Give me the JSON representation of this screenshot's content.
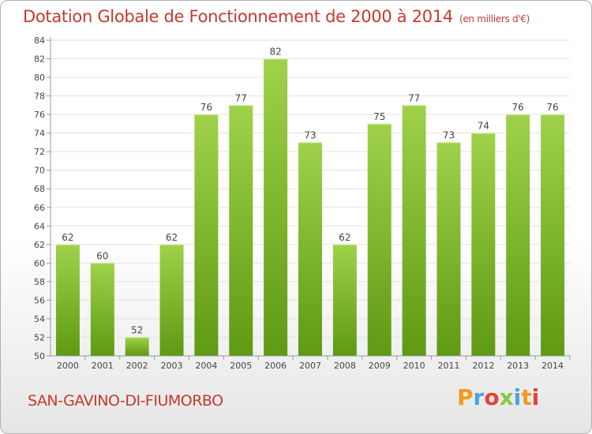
{
  "header": {
    "title": "Dotation Globale de Fonctionnement de 2000 à 2014",
    "unit": "(en milliers d'€)"
  },
  "footer": {
    "commune": "SAN-GAVINO-DI-FIUMORBO",
    "logo_text": "Proxiti"
  },
  "colors": {
    "title": "#c43a2d",
    "bar_top": "#9fd24a",
    "bar_bottom": "#5e9a12",
    "grid": "#e3e3e3",
    "axis": "#999999"
  },
  "chart_data": {
    "type": "bar",
    "title": "Dotation Globale de Fonctionnement de 2000 à 2014",
    "categories": [
      "2000",
      "2001",
      "2002",
      "2003",
      "2004",
      "2005",
      "2006",
      "2007",
      "2008",
      "2009",
      "2010",
      "2011",
      "2012",
      "2013",
      "2014"
    ],
    "values": [
      62,
      60,
      52,
      62,
      76,
      77,
      82,
      73,
      62,
      75,
      77,
      73,
      74,
      76,
      76
    ],
    "ylim": [
      50,
      84
    ],
    "yticks": [
      50,
      52,
      54,
      56,
      58,
      60,
      62,
      64,
      66,
      68,
      70,
      72,
      74,
      76,
      78,
      80,
      82,
      84
    ],
    "grid": true,
    "data_labels": true
  }
}
